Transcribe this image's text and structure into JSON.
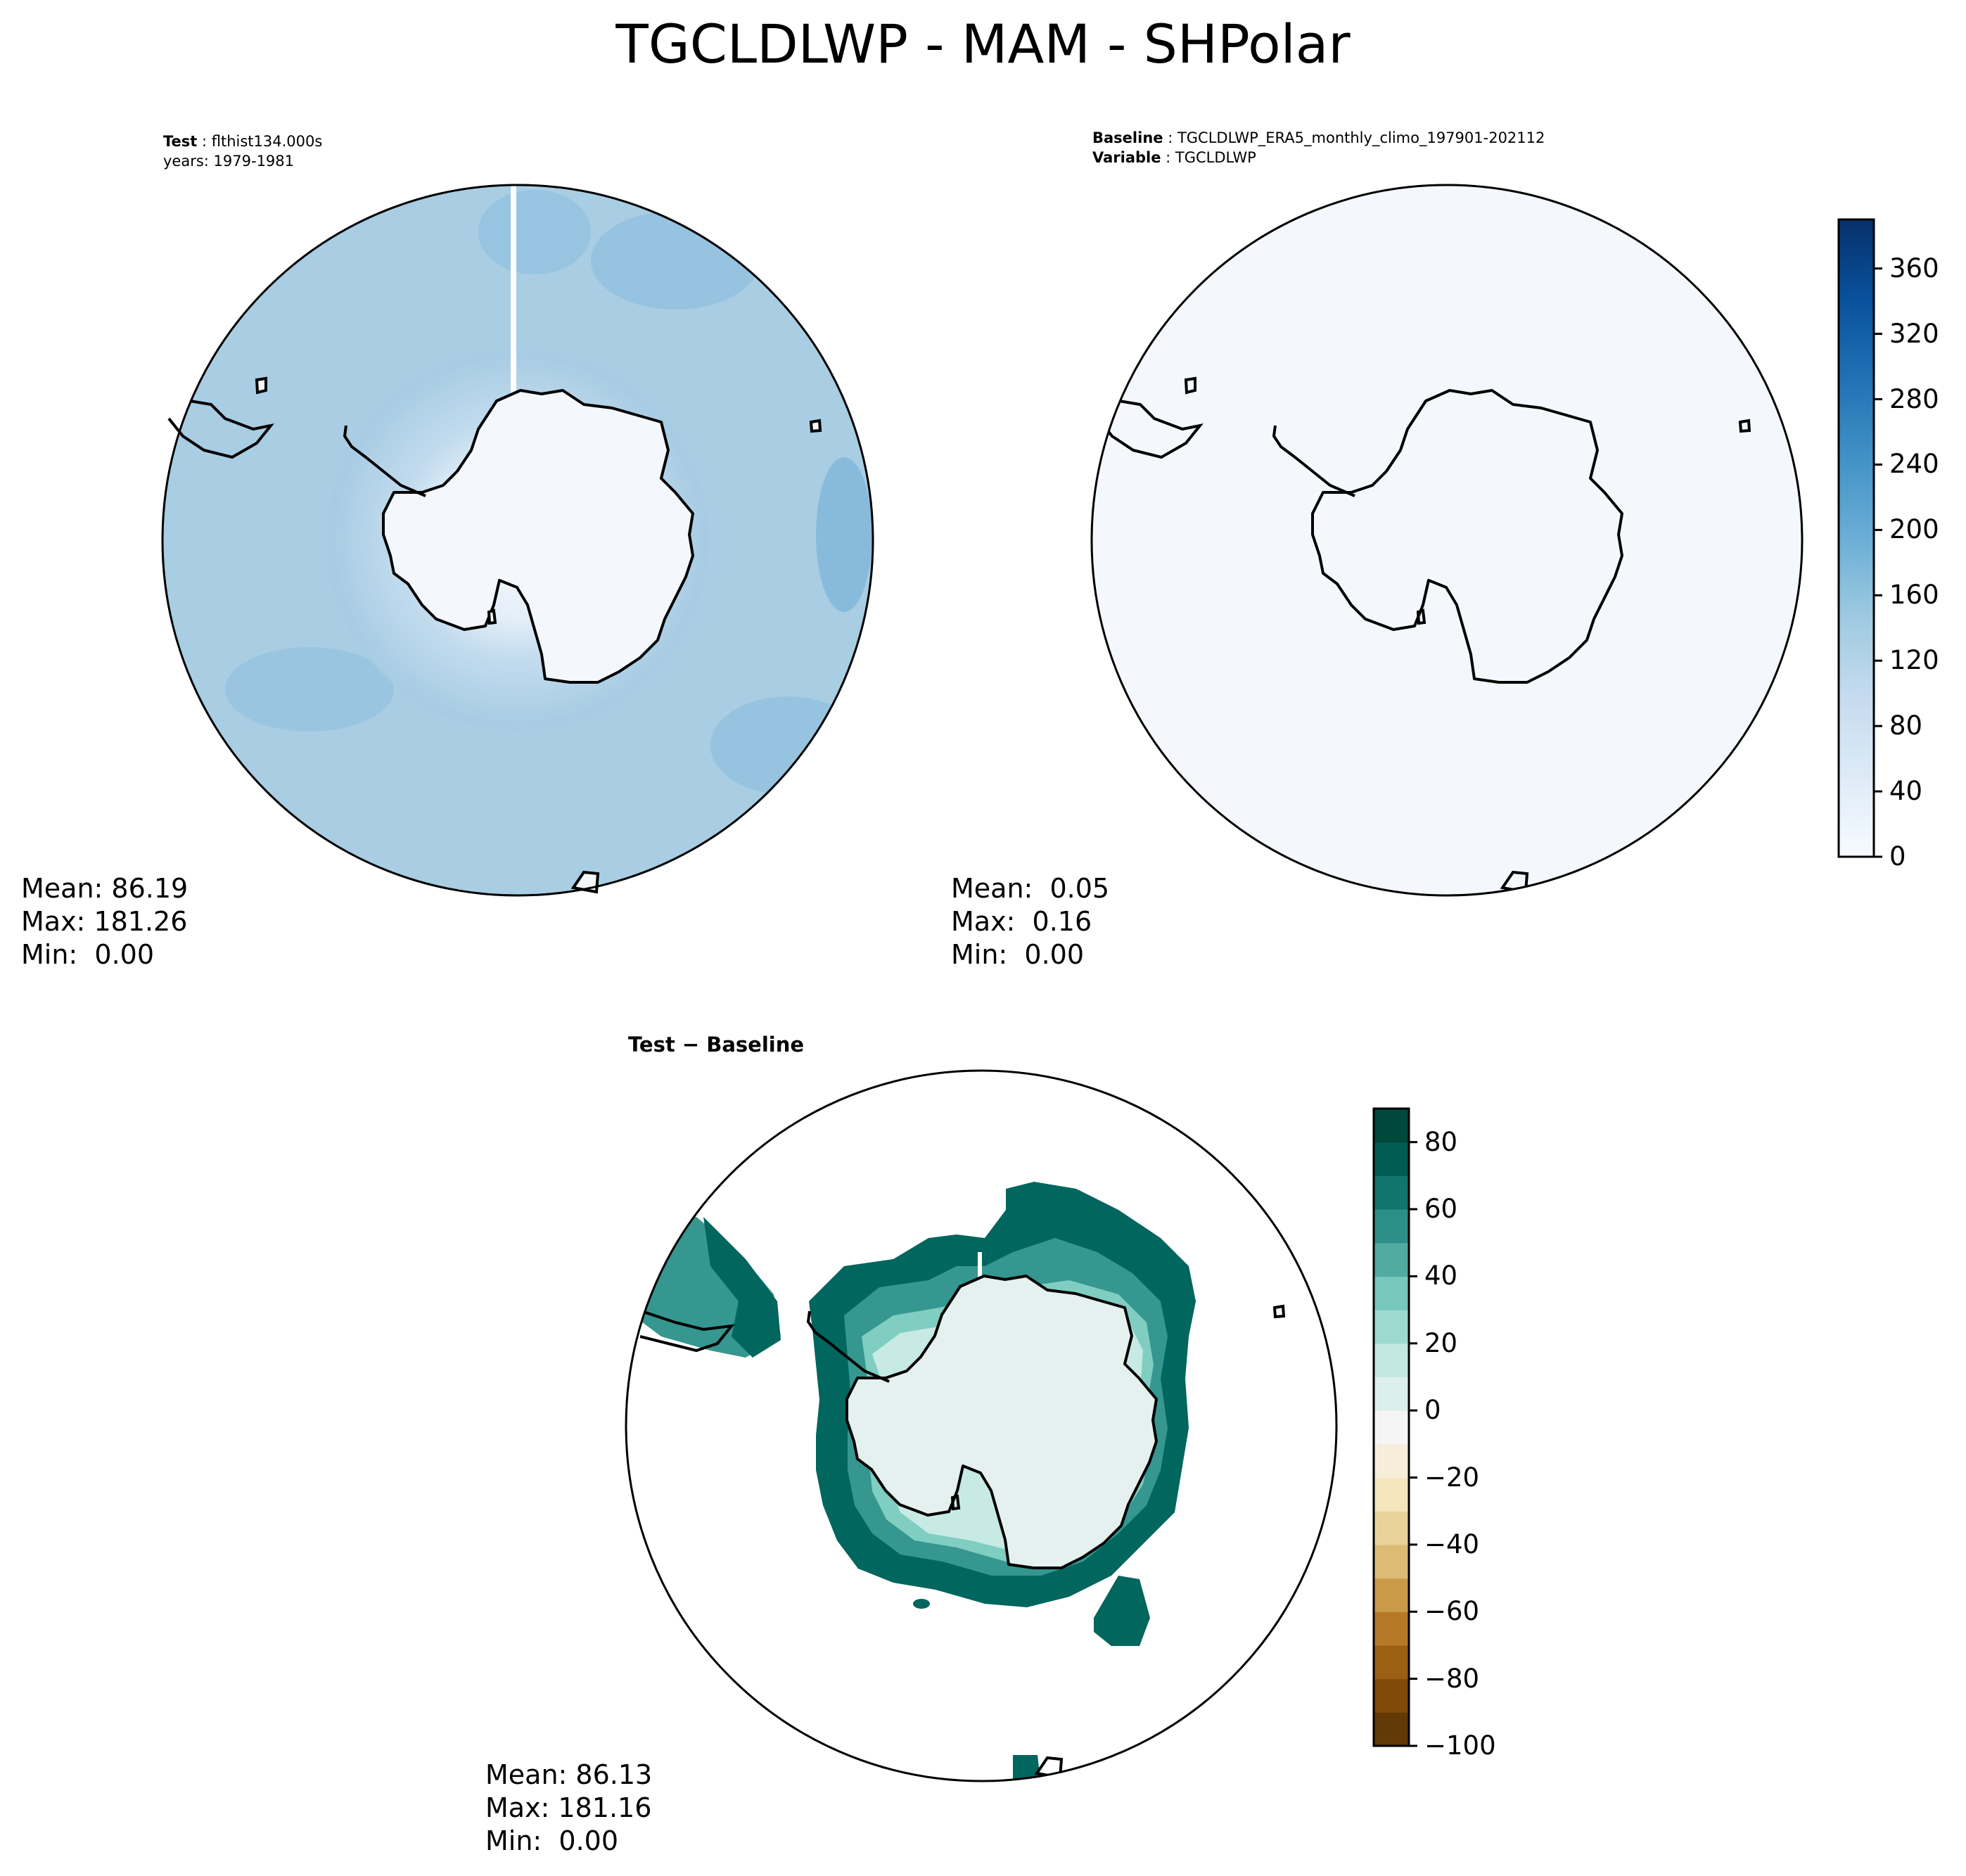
{
  "figure": {
    "title": "TGCLDLWP - MAM - SHPolar"
  },
  "panels": {
    "test": {
      "label_bold": "Test",
      "label_value": "flthist134.000s",
      "years": "years: 1979-1981",
      "stats": {
        "mean": "Mean: 86.19",
        "max": "Max: 181.26",
        "min": "Min:  0.00"
      }
    },
    "baseline": {
      "label_bold": "Baseline",
      "label_value": "TGCLDLWP_ERA5_monthly_climo_197901-202112",
      "var_bold": "Variable",
      "var_value": "TGCLDLWP",
      "stats": {
        "mean": "Mean:  0.05",
        "max": "Max:  0.16",
        "min": "Min:  0.00"
      }
    },
    "diff": {
      "label": "Test − Baseline",
      "stats": {
        "mean": "Mean: 86.13",
        "max": "Max: 181.16",
        "min": "Min:  0.00"
      }
    }
  },
  "colorbars": {
    "main": {
      "ticks": [
        "0",
        "40",
        "80",
        "120",
        "160",
        "200",
        "240",
        "280",
        "320",
        "360"
      ],
      "range": [
        0,
        390
      ],
      "colors": [
        "#f7fbff",
        "#deebf7",
        "#c6dbef",
        "#9ecae1",
        "#6baed6",
        "#4292c6",
        "#2171b5",
        "#08519c",
        "#08306b"
      ]
    },
    "diff": {
      "ticks": [
        "−100",
        "−80",
        "−60",
        "−40",
        "−20",
        "0",
        "20",
        "40",
        "60",
        "80"
      ],
      "range": [
        -100,
        90
      ],
      "colors": [
        "#543005",
        "#8c510a",
        "#bf812d",
        "#dfc27d",
        "#f6e8c3",
        "#f5f5f5",
        "#c7eae5",
        "#80cdc1",
        "#35978f",
        "#01665e",
        "#003c30"
      ]
    }
  },
  "colors": {
    "ocean_test": "#a9cde3",
    "land_test": "#f4f8fc",
    "baseline_fill": "#f4f8fc",
    "diff_land": "#e5f1ee",
    "diff_dark": "#01665e",
    "diff_mid": "#35978f",
    "diff_light": "#80cdc1"
  }
}
